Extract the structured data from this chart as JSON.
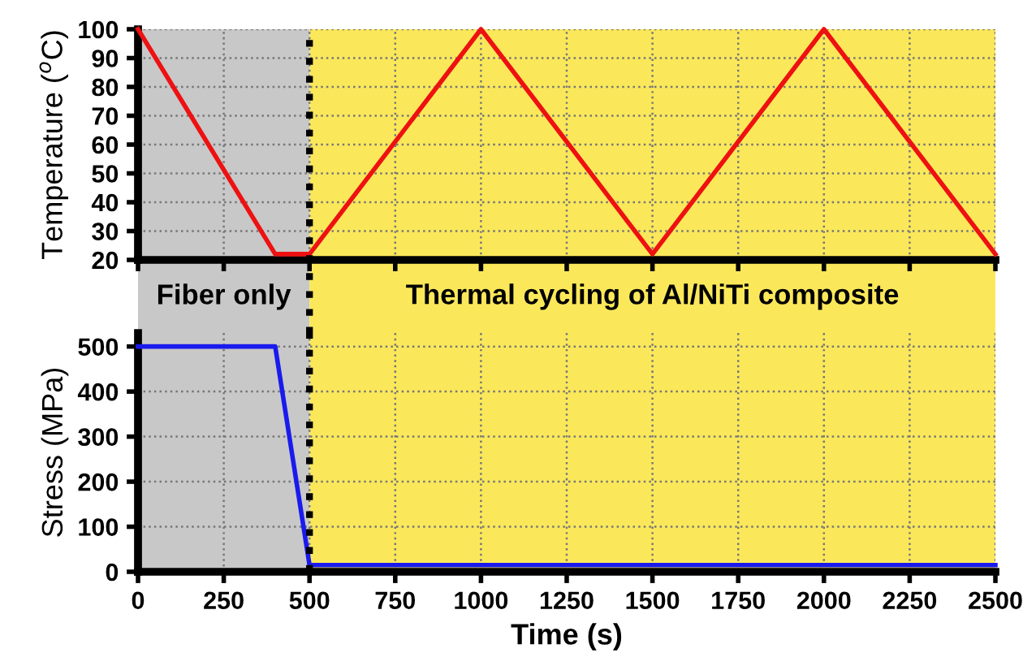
{
  "chart_data": [
    {
      "type": "line",
      "ylabel": "Temperature ($^{o}$C)",
      "x": [
        0,
        400,
        500,
        1000,
        1500,
        2000,
        2500
      ],
      "series": [
        {
          "color": "#ee1111",
          "values": [
            100,
            22,
            22,
            100,
            22,
            100,
            22
          ]
        }
      ],
      "xlim": [
        0,
        2500
      ],
      "xticks": [
        0,
        250,
        500,
        750,
        1000,
        1250,
        1500,
        1750,
        2000,
        2250,
        2500
      ],
      "ylim": [
        20,
        100
      ],
      "yticks": [
        20,
        30,
        40,
        50,
        60,
        70,
        80,
        90,
        100
      ],
      "tick_labels": "y",
      "grid": true,
      "line_style": "solid",
      "marker": "none",
      "bands": [
        {
          "axis": "x",
          "from": 0,
          "to": 500,
          "label": "Fiber only",
          "color": "#c8c8c8"
        },
        {
          "axis": "x",
          "from": 500,
          "to": 2500,
          "label": "Thermal cycling of Al/NiTi composite",
          "color": "#fbe85a"
        }
      ],
      "ref_lines": [
        {
          "axis": "x",
          "value": 500,
          "color": "#000000",
          "line_style": "dotted"
        }
      ]
    },
    {
      "type": "line",
      "ylabel": "Stress (MPa)",
      "xlabel": "Time (s)",
      "x": [
        0,
        400,
        500,
        2500
      ],
      "series": [
        {
          "color": "#1a1aee",
          "values": [
            500,
            500,
            15,
            15
          ]
        }
      ],
      "xlim": [
        0,
        2500
      ],
      "xticks": [
        0,
        250,
        500,
        750,
        1000,
        1250,
        1500,
        1750,
        2000,
        2250,
        2500
      ],
      "ylim": [
        0,
        530
      ],
      "yticks": [
        0,
        100,
        200,
        300,
        400,
        500
      ],
      "grid": true,
      "line_style": "solid",
      "marker": "none",
      "bands": [
        {
          "axis": "x",
          "from": 0,
          "to": 500,
          "color": "#c8c8c8"
        },
        {
          "axis": "x",
          "from": 500,
          "to": 2500,
          "color": "#fbe85a"
        }
      ],
      "ref_lines": [
        {
          "axis": "x",
          "value": 500,
          "color": "#000000",
          "line_style": "dotted"
        }
      ]
    }
  ]
}
